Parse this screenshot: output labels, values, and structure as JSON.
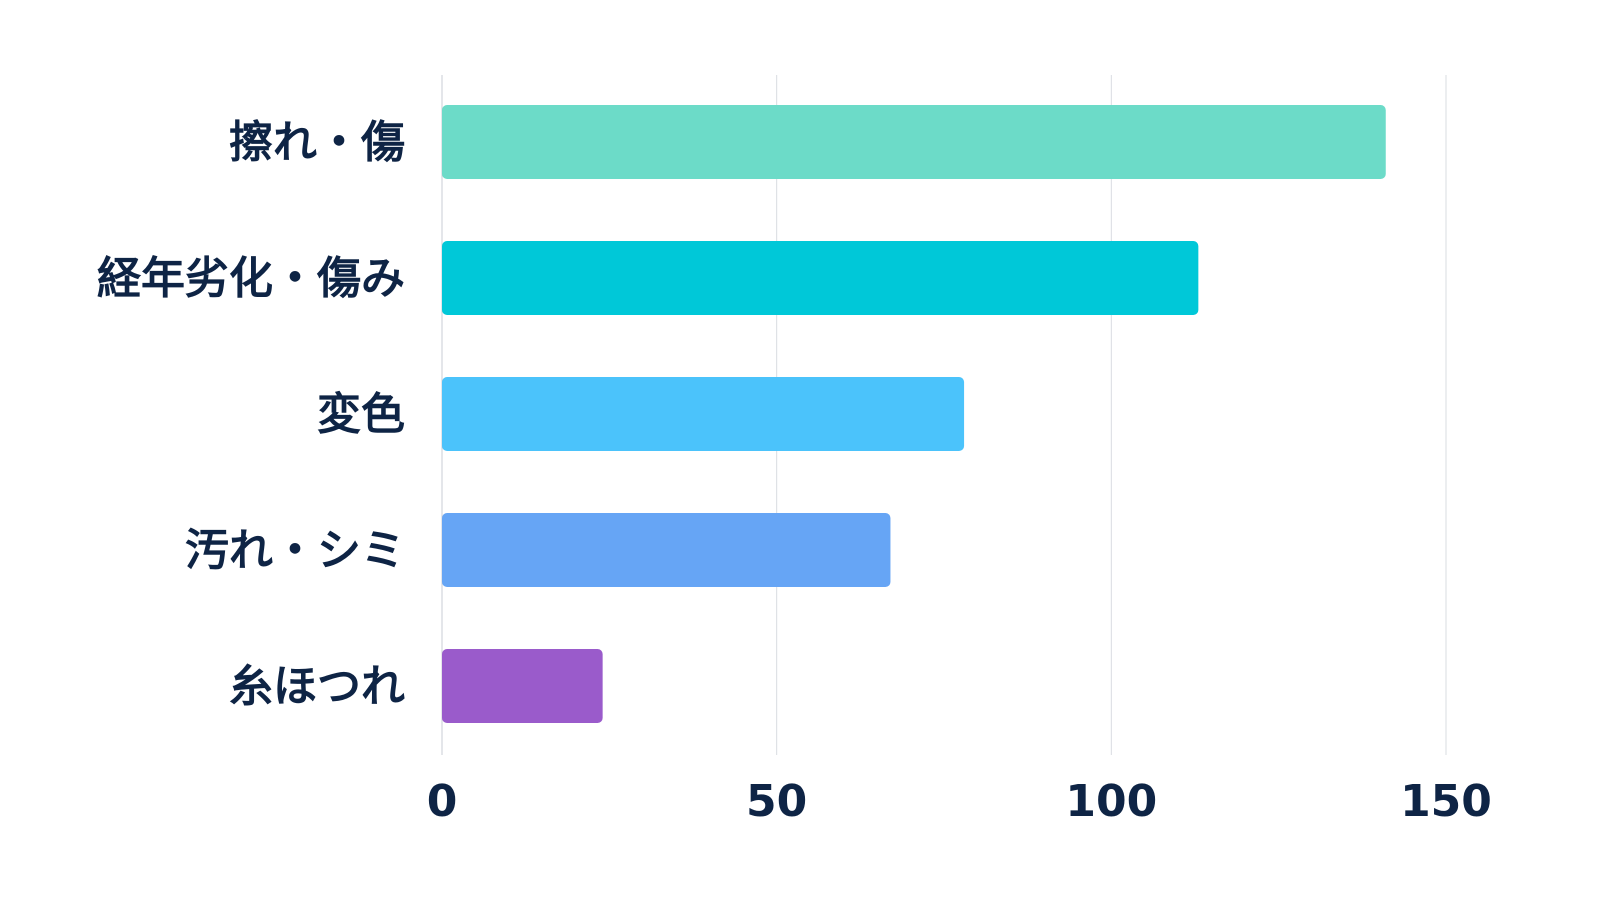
{
  "chart_data": {
    "type": "bar",
    "orientation": "horizontal",
    "categories": [
      "擦れ・傷",
      "経年劣化・傷み",
      "変色",
      "汚れ・シミ",
      "糸ほつれ"
    ],
    "values": [
      141,
      113,
      78,
      67,
      24
    ],
    "colors": [
      "#6cdbc8",
      "#00c8d8",
      "#4bc3fb",
      "#66a5f5",
      "#9a5bcb"
    ],
    "xlim": [
      0,
      150
    ],
    "xticks": [
      "0",
      "50",
      "100",
      "150"
    ],
    "grid": true,
    "title": "",
    "xlabel": "",
    "ylabel": ""
  }
}
